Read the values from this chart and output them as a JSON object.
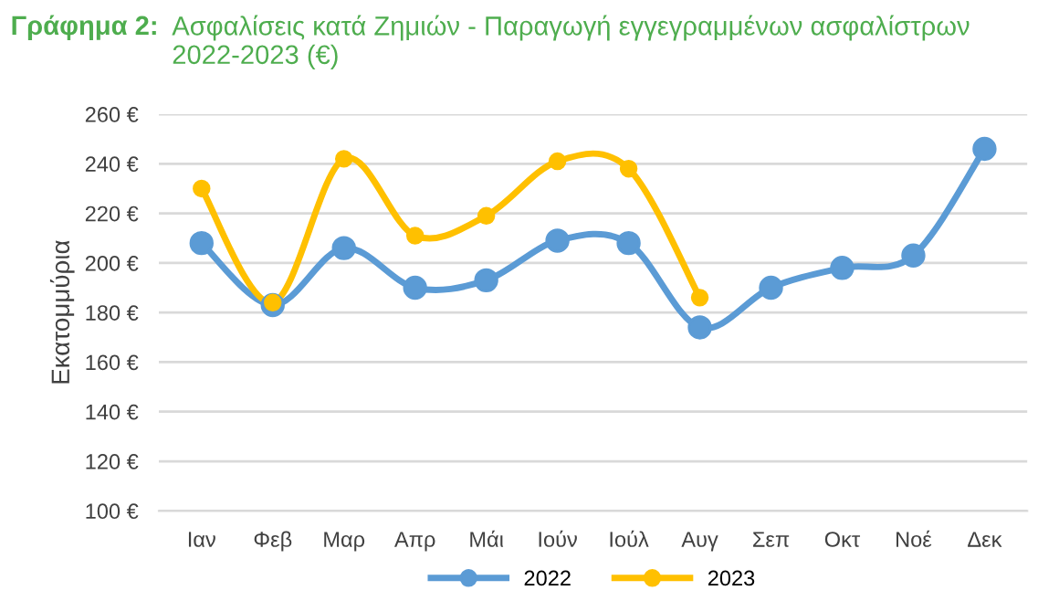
{
  "chart_data": {
    "type": "line",
    "title": "Γράφημα 2:",
    "subtitle": "Ασφαλίσεις κατά Ζημιών - Παραγωγή εγγεγραμμένων ασφαλίστρων 2022-2023 (€)",
    "ylabel": "Εκατομμύρια",
    "categories": [
      "Ιαν",
      "Φεβ",
      "Μαρ",
      "Απρ",
      "Μάι",
      "Ιούν",
      "Ιούλ",
      "Αυγ",
      "Σεπ",
      "Οκτ",
      "Νοέ",
      "Δεκ"
    ],
    "series": [
      {
        "name": "2022",
        "color": "#5b9bd5",
        "values": [
          208,
          183,
          206,
          190,
          193,
          209,
          208,
          174,
          190,
          198,
          203,
          246
        ]
      },
      {
        "name": "2023",
        "color": "#ffc000",
        "values": [
          230,
          184,
          242,
          211,
          219,
          241,
          238,
          186,
          null,
          null,
          null,
          null
        ]
      }
    ],
    "ylim": [
      100,
      260
    ],
    "yticks": [
      {
        "value": 100,
        "label": "100 €"
      },
      {
        "value": 120,
        "label": "120 €"
      },
      {
        "value": 140,
        "label": "140 €"
      },
      {
        "value": 160,
        "label": "160 €"
      },
      {
        "value": 180,
        "label": "180 €"
      },
      {
        "value": 200,
        "label": "200 €"
      },
      {
        "value": 220,
        "label": "220 €"
      },
      {
        "value": 240,
        "label": "240 €"
      },
      {
        "value": 260,
        "label": "260 €"
      }
    ],
    "grid": "y",
    "legend": "bottom",
    "marker": "circle",
    "line_style": "solid"
  }
}
